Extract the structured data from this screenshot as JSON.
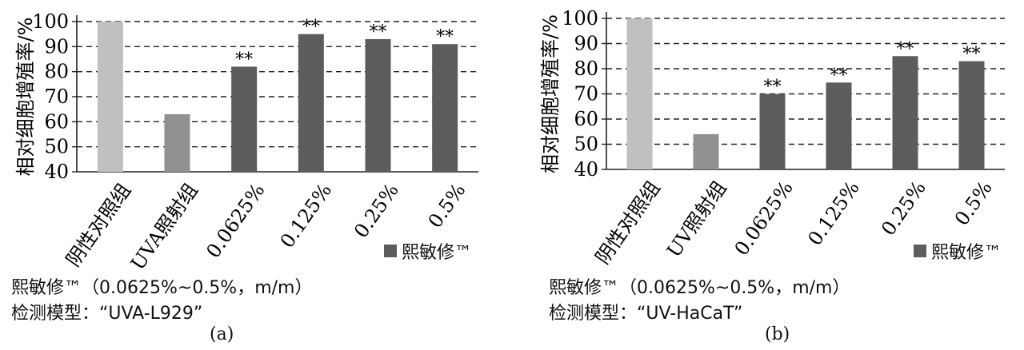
{
  "chart_data": [
    {
      "type": "bar",
      "panel": "(a)",
      "categories": [
        "阴性对照组",
        "UVA照射组",
        "0.0625%",
        "0.125%",
        "0.25%",
        "0.5%"
      ],
      "values": [
        100,
        63,
        82,
        95,
        93,
        91
      ],
      "annotations": [
        "",
        "",
        "**",
        "**",
        "**",
        "**"
      ],
      "ylabel": "相对细胞增殖率/%",
      "ylim": [
        40,
        100
      ],
      "yticks": [
        40,
        50,
        60,
        70,
        80,
        90,
        100
      ],
      "grid": true,
      "legend": {
        "label": "熙敏修™",
        "position": "bottom-right"
      },
      "bar_colors": [
        "#c0c0c0",
        "#909090",
        "#5c5c5c",
        "#5c5c5c",
        "#5c5c5c",
        "#5c5c5c"
      ],
      "caption_line1": "熙敏修™（0.0625%~0.5%，m/m）",
      "caption_line2": "检测模型：“UVA-L929”"
    },
    {
      "type": "bar",
      "panel": "(b)",
      "categories": [
        "阴性对照组",
        "UV照射组",
        "0.0625%",
        "0.125%",
        "0.25%",
        "0.5%"
      ],
      "values": [
        100,
        54,
        70,
        74.5,
        85,
        83
      ],
      "annotations": [
        "",
        "",
        "**",
        "**",
        "**",
        "**"
      ],
      "ylabel": "相对细胞增殖率/%",
      "ylim": [
        40,
        100
      ],
      "yticks": [
        40,
        50,
        60,
        70,
        80,
        90,
        100
      ],
      "grid": true,
      "legend": {
        "label": "熙敏修™",
        "position": "bottom-right"
      },
      "bar_colors": [
        "#c0c0c0",
        "#909090",
        "#5c5c5c",
        "#5c5c5c",
        "#5c5c5c",
        "#5c5c5c"
      ],
      "caption_line1": "熙敏修™（0.0625%~0.5%，m/m）",
      "caption_line2": "检测模型：“UV-HaCaT”"
    }
  ]
}
